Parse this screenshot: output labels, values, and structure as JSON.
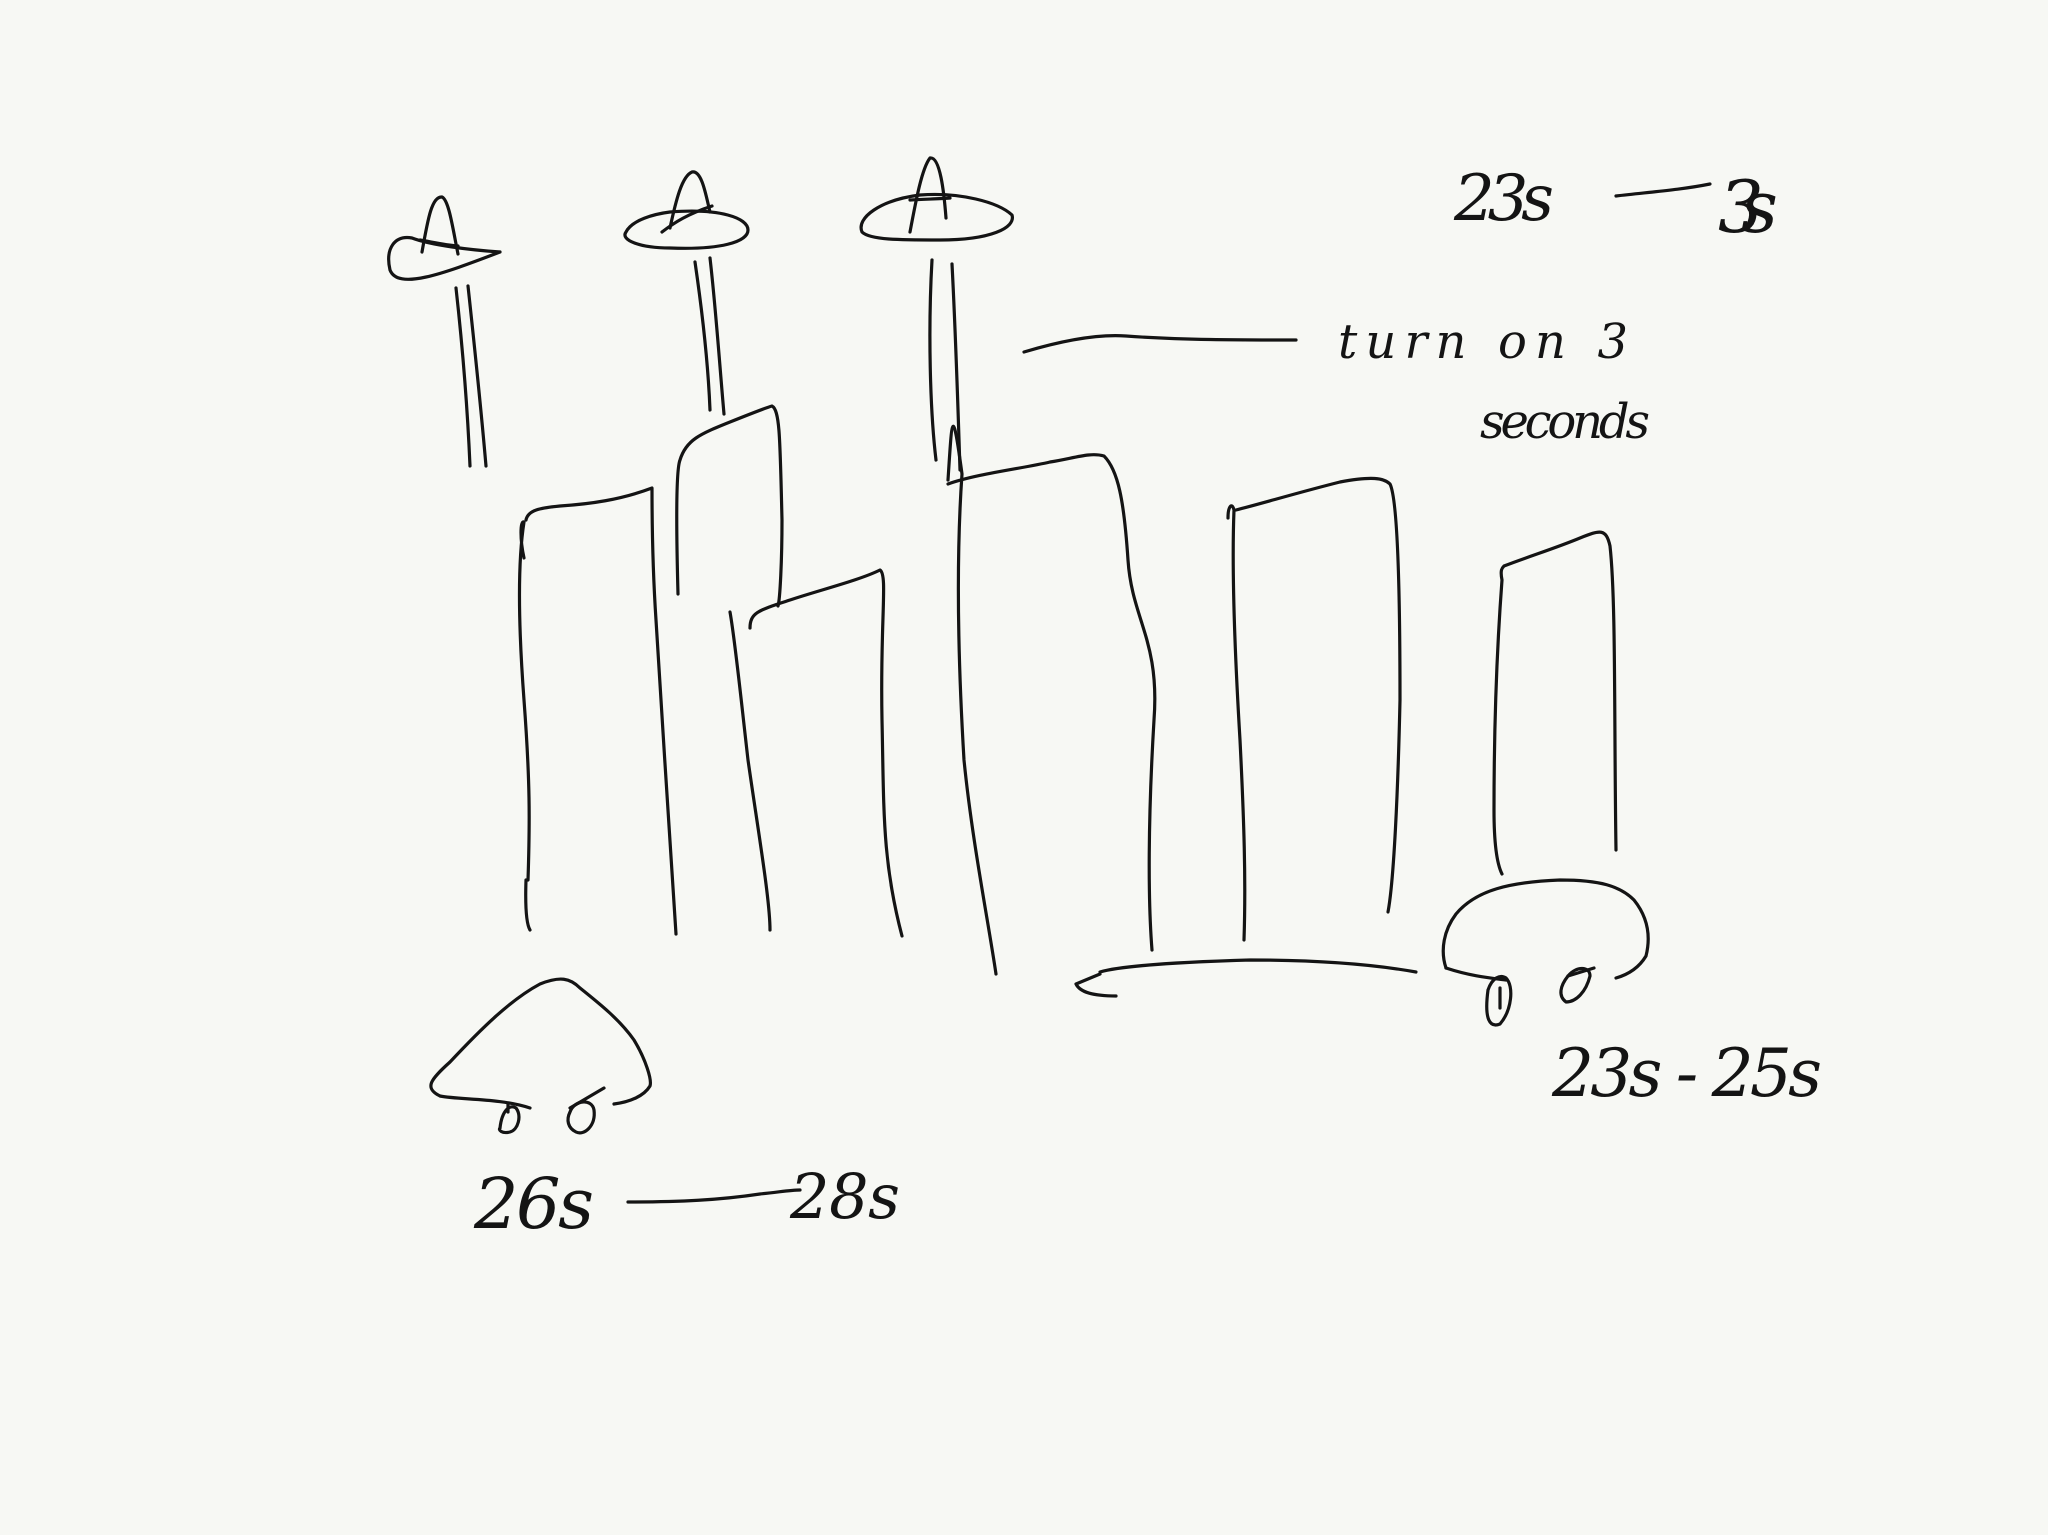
{
  "canvas": {
    "background": "#f7f8f4",
    "ink_color": "#141414"
  },
  "sketch": {
    "ufos": [
      {
        "name": "ufo-left",
        "beam_count": 2
      },
      {
        "name": "ufo-middle",
        "beam_count": 2
      },
      {
        "name": "ufo-right",
        "beam_count": 2
      }
    ],
    "buildings_count": 9,
    "cars": [
      {
        "name": "car-left"
      },
      {
        "name": "car-right",
        "direction": "left"
      }
    ]
  },
  "annotations": {
    "ufo_timing_start": "23s",
    "ufo_timing_end": "3s",
    "beam_note_line1": "turn on 3",
    "beam_note_line2": "seconds",
    "car_right_timing": "23s - 25s",
    "car_left_start": "26s",
    "car_left_end": "28s"
  }
}
